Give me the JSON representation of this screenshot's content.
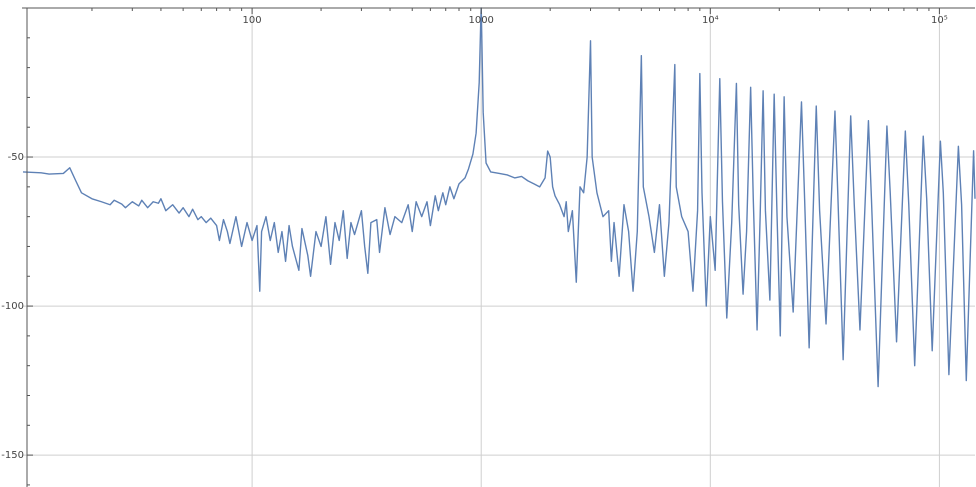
{
  "chart_data": {
    "type": "line",
    "xscale": "log",
    "grid": true,
    "color": "#5e81b5",
    "xlim": [
      9.9,
      143000
    ],
    "ylim": [
      -160.7,
      0
    ],
    "xticks": [
      100,
      1000,
      {
        "value": 10000,
        "label": "10⁴"
      },
      {
        "value": 100000,
        "label": "10⁵"
      }
    ],
    "xminorticks": [
      20,
      30,
      40,
      50,
      60,
      70,
      80,
      90,
      200,
      300,
      400,
      500,
      600,
      700,
      800,
      900,
      2000,
      3000,
      4000,
      5000,
      6000,
      7000,
      8000,
      9000,
      20000,
      30000,
      40000,
      50000,
      60000,
      70000,
      80000,
      90000
    ],
    "yticks": [
      -50,
      -100,
      -150
    ],
    "yminorticks": [
      -10,
      -20,
      -30,
      -40,
      -60,
      -70,
      -80,
      -90,
      -110,
      -120,
      -130,
      -140,
      -160
    ],
    "x": [
      10,
      12,
      13,
      15,
      16,
      17,
      18,
      20,
      22,
      24,
      25,
      27,
      28,
      30,
      32,
      33,
      35,
      37,
      39,
      40,
      42,
      45,
      48,
      50,
      53,
      55,
      58,
      60,
      63,
      66,
      70,
      72,
      75,
      78,
      80,
      85,
      88,
      90,
      95,
      100,
      105,
      108,
      110,
      115,
      120,
      125,
      130,
      135,
      140,
      145,
      150,
      160,
      165,
      175,
      180,
      190,
      200,
      210,
      220,
      230,
      240,
      250,
      260,
      270,
      280,
      300,
      310,
      320,
      330,
      350,
      360,
      380,
      400,
      420,
      450,
      480,
      500,
      520,
      550,
      580,
      600,
      630,
      650,
      680,
      700,
      730,
      760,
      800,
      850,
      880,
      920,
      950,
      980,
      995,
      1000,
      1005,
      1020,
      1050,
      1100,
      1200,
      1300,
      1400,
      1500,
      1600,
      1700,
      1800,
      1900,
      1950,
      2000,
      2050,
      2100,
      2200,
      2300,
      2350,
      2400,
      2500,
      2600,
      2700,
      2800,
      2900,
      3000,
      3050,
      3200,
      3400,
      3600,
      3700,
      3800,
      4000,
      4200,
      4400,
      4600,
      4800,
      5000,
      5100,
      5400,
      5700,
      6000,
      6300,
      6600,
      7000,
      7100,
      7500,
      8000,
      8400,
      8800,
      9000,
      9200,
      9600,
      10000,
      10500,
      11000,
      11300,
      11800,
      12400,
      13000,
      13300,
      13900,
      14400,
      15000,
      15400,
      16000,
      16500,
      17000,
      17400,
      18200,
      19000,
      19500,
      20200,
      21000,
      21600,
      23000,
      25000,
      25800,
      27000,
      29000,
      30000,
      32000,
      35000,
      36000,
      38000,
      41000,
      42500,
      45000,
      49000,
      50500,
      54000,
      59000,
      61000,
      65000,
      71000,
      73500,
      78000,
      85000,
      88000,
      93000,
      101000,
      104000,
      110000,
      121000,
      125000,
      131000,
      141000,
      143000
    ],
    "values": [
      -55,
      -55.3,
      -55.7,
      -55.5,
      -53.6,
      -58,
      -62,
      -64,
      -65,
      -66,
      -64.5,
      -65.8,
      -67,
      -65,
      -66.4,
      -64.5,
      -67,
      -65,
      -65.5,
      -64,
      -68,
      -66,
      -68.8,
      -67,
      -70,
      -67.5,
      -71,
      -70,
      -72,
      -70.5,
      -73,
      -78,
      -71,
      -75,
      -79,
      -70,
      -76,
      -80,
      -72,
      -78,
      -73,
      -95,
      -75,
      -70,
      -78,
      -72,
      -82,
      -75,
      -85,
      -73,
      -80,
      -88,
      -74,
      -83,
      -90,
      -75,
      -80,
      -70,
      -86,
      -72,
      -78,
      -68,
      -84,
      -72,
      -76,
      -68,
      -80,
      -89,
      -72,
      -71,
      -82,
      -67,
      -76,
      -70,
      -72,
      -66,
      -75,
      -65,
      -70,
      -65,
      -73,
      -63,
      -68,
      -62,
      -66,
      -60,
      -64,
      -59,
      -57,
      -54,
      -49,
      -42,
      -25,
      -5,
      0,
      -8,
      -35,
      -52,
      -55,
      -55.5,
      -56,
      -57,
      -56.5,
      -58,
      -59,
      -60,
      -57,
      -48,
      -50,
      -60,
      -63,
      -66,
      -70,
      -65,
      -75,
      -68,
      -92,
      -60,
      -62,
      -50,
      -11,
      -50,
      -62,
      -70,
      -68,
      -85,
      -72,
      -90,
      -66,
      -75,
      -95,
      -75,
      -16,
      -60,
      -70,
      -82,
      -66,
      -90,
      -72,
      -19,
      -60,
      -70,
      -75,
      -95,
      -68,
      -22,
      -62,
      -100,
      -70,
      -88,
      -23.7,
      -65,
      -104,
      -72,
      -25.3,
      -66,
      -96,
      -75,
      -26.6,
      -64,
      -108,
      -70,
      -27.8,
      -68,
      -98,
      -28.9,
      -66,
      -110,
      -29.8,
      -70,
      -102,
      -31.5,
      -64,
      -114,
      -32.9,
      -68,
      -106,
      -34.6,
      -62,
      -118,
      -36.2,
      -66,
      -108,
      -37.8,
      -64,
      -127,
      -39.6,
      -62,
      -112,
      -41.3,
      -66,
      -120,
      -43,
      -64,
      -115,
      -44.7,
      -62,
      -123,
      -46.4,
      -66,
      -125,
      -47.9,
      -64
    ]
  }
}
